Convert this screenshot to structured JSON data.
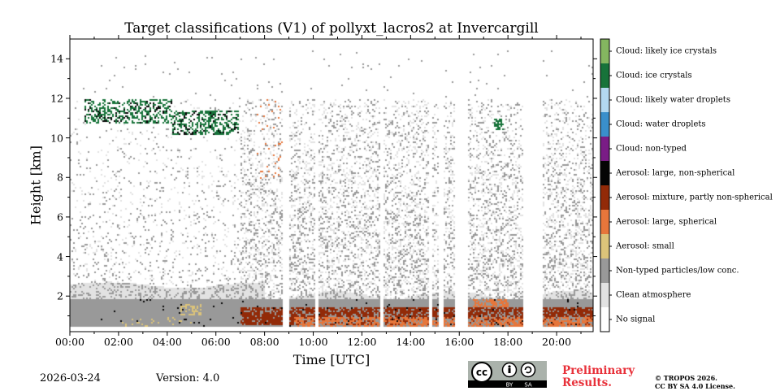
{
  "chart_data": {
    "type": "heatmap",
    "title": "Target classifications (V1) of pollyxt_lacros2 at Invercargill",
    "xlabel": "Time [UTC]",
    "ylabel": "Height [km]",
    "xlim_hours": [
      0,
      21.5
    ],
    "ylim_km": [
      0.2,
      15
    ],
    "x_ticks": [
      "00:00",
      "02:00",
      "04:00",
      "06:00",
      "08:00",
      "10:00",
      "12:00",
      "14:00",
      "16:00",
      "18:00",
      "20:00"
    ],
    "y_ticks": [
      "2",
      "4",
      "6",
      "8",
      "10",
      "12",
      "14"
    ],
    "classes": [
      {
        "id": 0,
        "label": "No signal",
        "color": "#ffffff"
      },
      {
        "id": 1,
        "label": "Clean atmosphere",
        "color": "#e2e2e2"
      },
      {
        "id": 2,
        "label": "Non-typed particles/low conc.",
        "color": "#999999"
      },
      {
        "id": 3,
        "label": "Aerosol: small",
        "color": "#dcc47a"
      },
      {
        "id": 4,
        "label": "Aerosol: large, spherical",
        "color": "#e6763b"
      },
      {
        "id": 5,
        "label": "Aerosol: mixture, partly non-spherical",
        "color": "#922a08"
      },
      {
        "id": 6,
        "label": "Aerosol: large, non-spherical",
        "color": "#050505"
      },
      {
        "id": 7,
        "label": "Cloud: non-typed",
        "color": "#7a1c86"
      },
      {
        "id": 8,
        "label": "Cloud: water droplets",
        "color": "#3a8fcb"
      },
      {
        "id": 9,
        "label": "Cloud: likely water droplets",
        "color": "#b3d8f0"
      },
      {
        "id": 10,
        "label": "Cloud: ice crystals",
        "color": "#17733a"
      },
      {
        "id": 11,
        "label": "Cloud: likely ice crystals",
        "color": "#84b660"
      }
    ],
    "no_signal_gaps_hours": [
      [
        8.7,
        8.95
      ],
      [
        10.05,
        10.2
      ],
      [
        12.75,
        12.85
      ],
      [
        14.75,
        14.85
      ],
      [
        15.1,
        15.35
      ],
      [
        15.8,
        16.3
      ],
      [
        18.6,
        19.4
      ]
    ],
    "features": [
      {
        "class": "Clean atmosphere",
        "note": "dense layer from surface to ~2.5 km, sparse above to ~12 km"
      },
      {
        "class": "Non-typed particles/low conc.",
        "note": "surface layer 0.5-2 km"
      },
      {
        "class": "Aerosol: mixture, partly non-spherical",
        "note": "0.6-1.6 km after 07:00"
      },
      {
        "class": "Aerosol: large, spherical",
        "note": "0.4-2.0 km after 09:00"
      },
      {
        "class": "Cloud: ice crystals",
        "note": "10-12 km between 00:30 and 07:00, small patch near 17:30"
      }
    ]
  },
  "footer": {
    "date": "2026-03-24",
    "version": "Version: 4.0",
    "preliminary_line1": "Preliminary",
    "preliminary_line2": "Results.",
    "copyright_line1": "© TROPOS 2026.",
    "copyright_line2": "CC BY SA 4.0 License."
  },
  "license_badge": {
    "cc": "cc",
    "by": "BY",
    "sa": "SA"
  }
}
